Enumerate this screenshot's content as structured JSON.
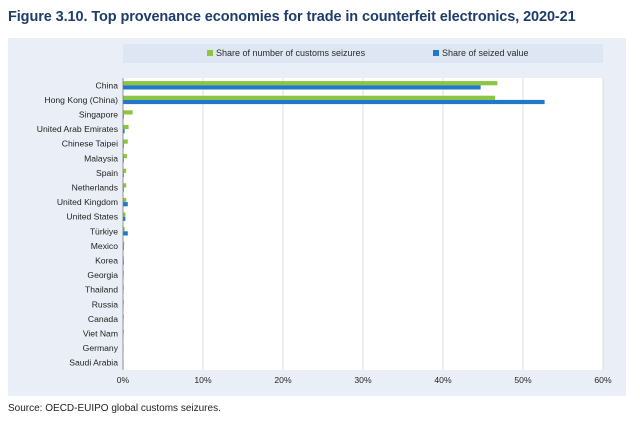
{
  "title": "Figure 3.10. Top provenance economies for trade in counterfeit electronics, 2020-21",
  "source": "Source: OECD-EUIPO global customs seizures.",
  "chart_data": {
    "type": "bar",
    "orientation": "horizontal",
    "categories": [
      "China",
      "Hong Kong (China)",
      "Singapore",
      "United Arab Emirates",
      "Chinese Taipei",
      "Malaysia",
      "Spain",
      "Netherlands",
      "United Kingdom",
      "United States",
      "Türkiye",
      "Mexico",
      "Korea",
      "Georgia",
      "Thailand",
      "Russia",
      "Canada",
      "Viet Nam",
      "Germany",
      "Saudi Arabia"
    ],
    "series": [
      {
        "name": "Share of number of customs seizures",
        "color": "#8cc63f",
        "values": [
          46.8,
          46.5,
          1.2,
          0.7,
          0.6,
          0.5,
          0.4,
          0.4,
          0.4,
          0.3,
          0.2,
          0.15,
          0.1,
          0.1,
          0.1,
          0.1,
          0.1,
          0.1,
          0.05,
          0.05
        ]
      },
      {
        "name": "Share of seized value",
        "color": "#1f78c8",
        "values": [
          44.7,
          52.7,
          0.1,
          0.2,
          0.1,
          0.1,
          0.1,
          0.1,
          0.6,
          0.3,
          0.6,
          0.1,
          0.1,
          0.05,
          0.05,
          0.05,
          0.05,
          0.05,
          0.05,
          0.05
        ]
      }
    ],
    "xlim": [
      0,
      60
    ],
    "xticks": [
      0,
      10,
      20,
      30,
      40,
      50,
      60
    ],
    "tick_suffix": "%",
    "grid": true,
    "legend_position": "top"
  }
}
